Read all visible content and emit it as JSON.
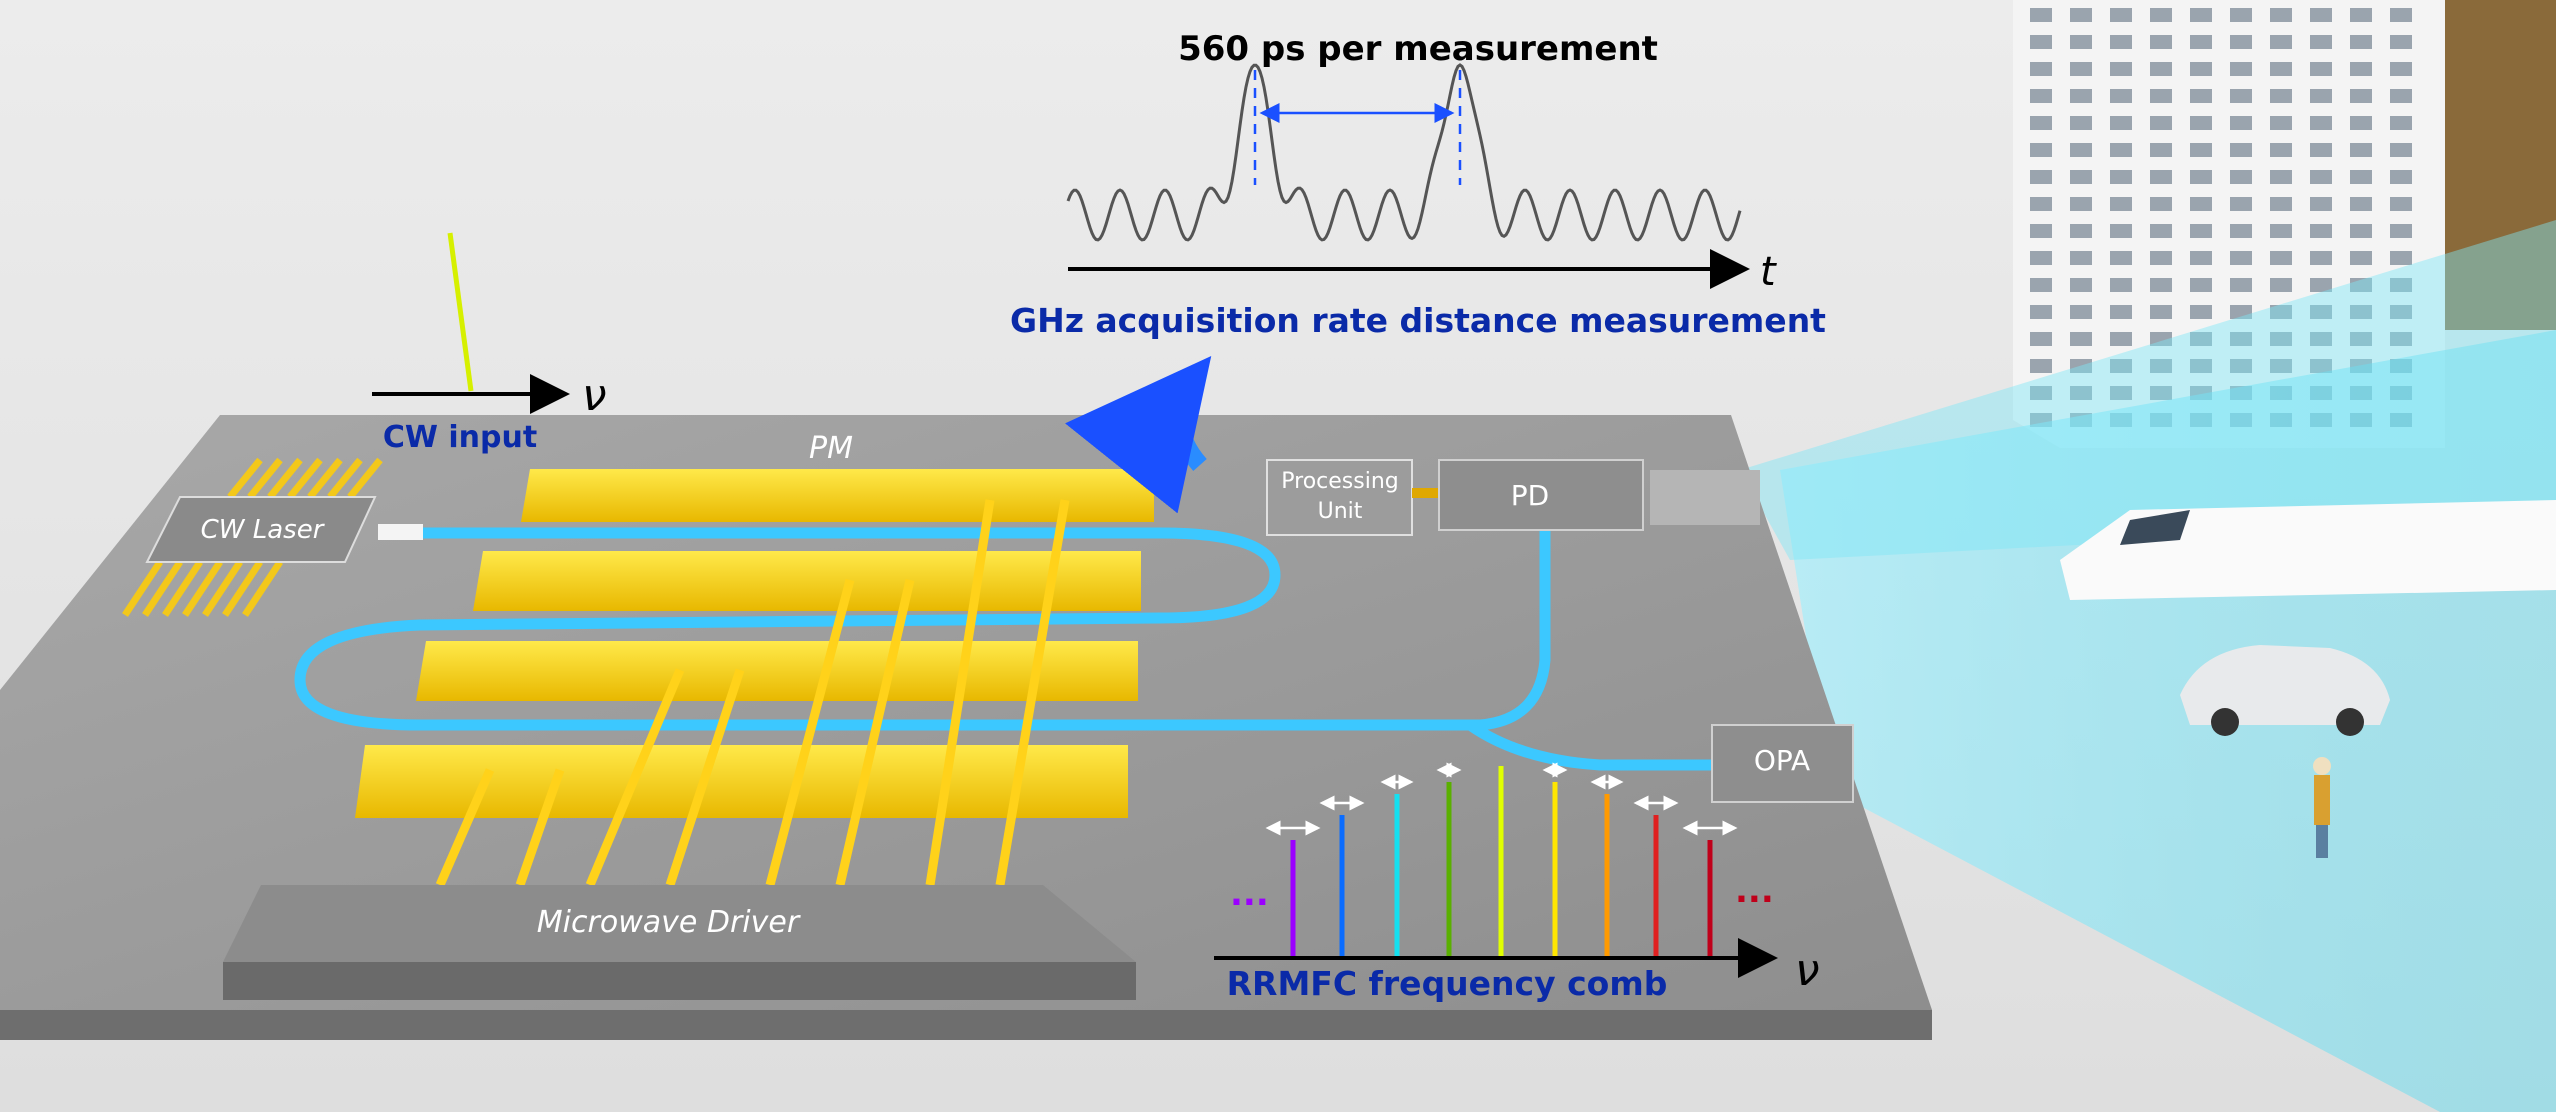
{
  "top_graph": {
    "title": "560 ps per measurement",
    "caption": "GHz acquisition rate distance measurement",
    "axis_label": "t"
  },
  "cw_input": {
    "label": "CW input",
    "axis_label": "ν"
  },
  "chip": {
    "cw_laser": "CW Laser",
    "pm": "PM",
    "microwave_driver": "Microwave Driver",
    "processing_unit_line1": "Processing",
    "processing_unit_line2": "Unit",
    "pd": "PD",
    "opa": "OPA"
  },
  "comb": {
    "caption": "RRMFC frequency comb",
    "axis_label": "ν",
    "ellipsis_left": "...",
    "ellipsis_right": "...",
    "line_colors": [
      "#9b00ff",
      "#0a6cff",
      "#14e0f0",
      "#5ab000",
      "#e0ff00",
      "#ffe600",
      "#ff9a00",
      "#e02020",
      "#c0001a"
    ]
  },
  "colors": {
    "caption_blue": "#0a2aa8",
    "arrow_blue": "#1a50ff",
    "electrode_yellow": "#f3d21a",
    "waveguide_cyan": "#3cc8ff",
    "board_gray": "#9a9a9a"
  }
}
